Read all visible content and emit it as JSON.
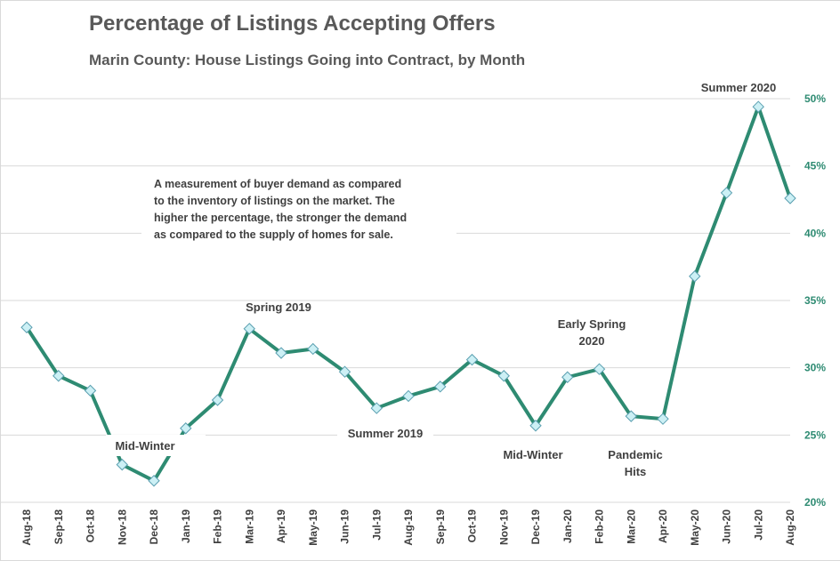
{
  "chart_data": {
    "type": "line",
    "title": "Percentage of Listings Accepting Offers",
    "subtitle": "Marin County: House Listings Going into Contract, by Month",
    "categories": [
      "Aug-18",
      "Sep-18",
      "Oct-18",
      "Nov-18",
      "Dec-18",
      "Jan-19",
      "Feb-19",
      "Mar-19",
      "Apr-19",
      "May-19",
      "Jun-19",
      "Jul-19",
      "Aug-19",
      "Sep-19",
      "Oct-19",
      "Nov-19",
      "Dec-19",
      "Jan-20",
      "Feb-20",
      "Mar-20",
      "Apr-20",
      "May-20",
      "Jun-20",
      "Jul-20",
      "Aug-20"
    ],
    "series": [
      {
        "name": "",
        "values": [
          33.0,
          29.4,
          28.3,
          22.8,
          21.6,
          25.5,
          27.6,
          32.9,
          31.1,
          31.4,
          29.7,
          27.0,
          27.9,
          28.6,
          30.6,
          29.4,
          25.7,
          29.3,
          29.9,
          26.4,
          26.2,
          36.8,
          43.0,
          49.4,
          42.6
        ]
      }
    ],
    "y_axis": {
      "min": 20,
      "max": 50,
      "step": 5,
      "position": "right",
      "format": "percent",
      "tick_labels": [
        "20%",
        "25%",
        "30%",
        "35%",
        "40%",
        "45%",
        "50%"
      ]
    },
    "grid": true,
    "legend": "none",
    "annotations": [
      {
        "lines": [
          "Mid-Winter"
        ],
        "near": "Dec-18"
      },
      {
        "lines": [
          "Spring 2019"
        ],
        "near": "Mar-19"
      },
      {
        "lines": [
          "Summer 2019"
        ],
        "near": "Jul-19"
      },
      {
        "lines": [
          "Mid-Winter"
        ],
        "near": "Dec-19"
      },
      {
        "lines": [
          "Early Spring",
          "2020"
        ],
        "near": "Feb-20"
      },
      {
        "lines": [
          "Pandemic",
          "Hits"
        ],
        "near": "Mar-20"
      },
      {
        "lines": [
          "Summer 2020"
        ],
        "near": "Jul-20"
      }
    ],
    "description": [
      "A measurement of buyer demand as compared",
      "to the inventory of listings on the market. The",
      "higher the percentage, the stronger the demand",
      "as compared to the supply of homes for sale."
    ],
    "colors": {
      "line": "#2e8b72",
      "marker_fill": "#ccf0f5",
      "marker_stroke": "#5a9fb0",
      "axis_text": "#2e8b72",
      "grid": "#d9d9d9"
    }
  }
}
